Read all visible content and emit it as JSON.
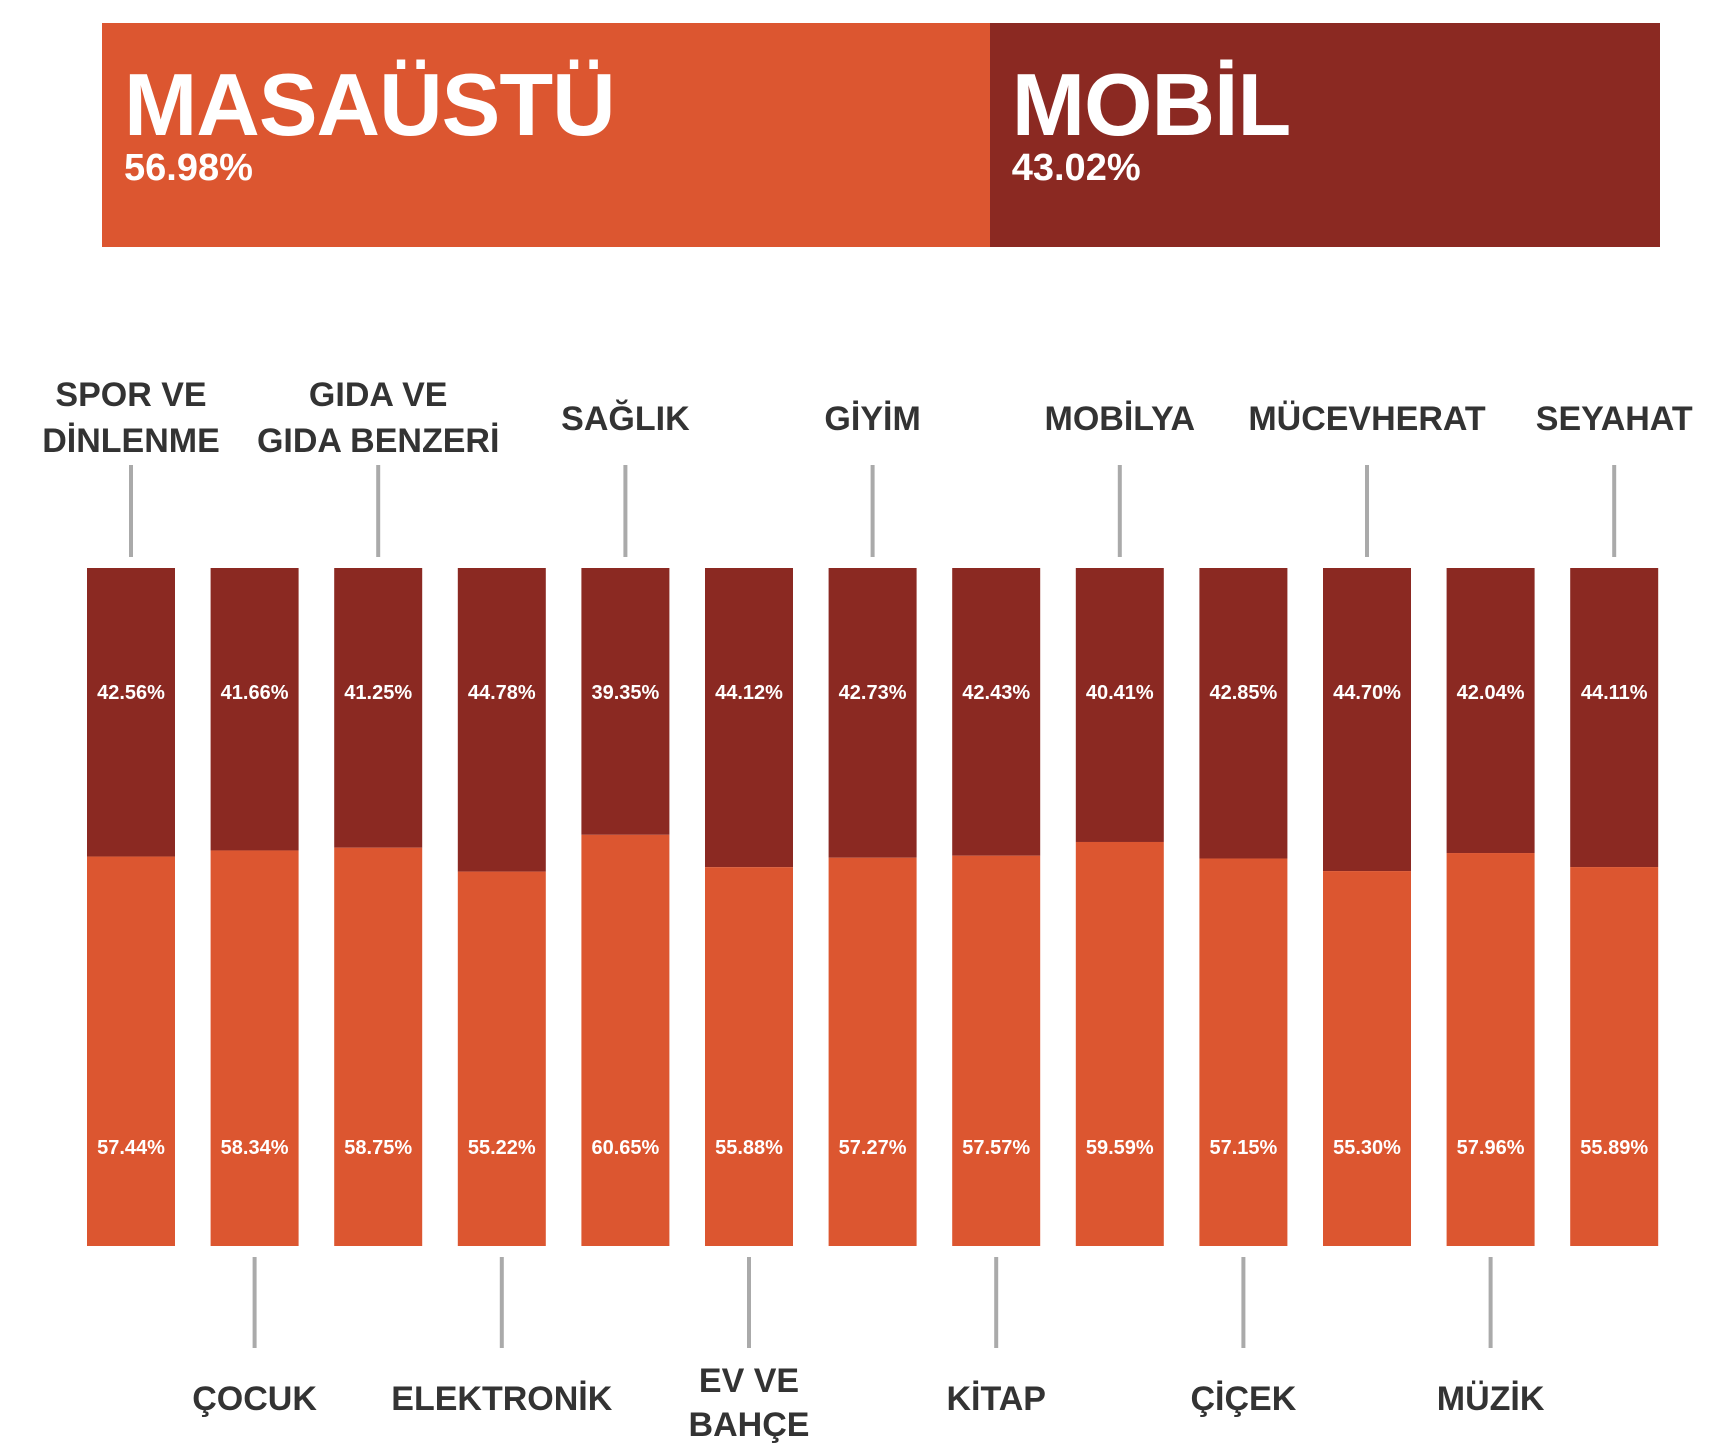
{
  "summary": {
    "desktop": {
      "label": "MASAÜSTÜ",
      "value_text": "56.98%",
      "value": 56.98
    },
    "mobile": {
      "label": "MOBİL",
      "value_text": "43.02%",
      "value": 43.02
    }
  },
  "colors": {
    "desktop": "#dc5630",
    "mobile": "#8b2922",
    "leader": "#aaaaaa",
    "label": "#333333"
  },
  "chart_data": {
    "type": "bar",
    "stacked": true,
    "categories": [
      [
        "SPOR VE",
        "DİNLENME"
      ],
      [
        "ÇOCUK"
      ],
      [
        "GIDA VE",
        "GIDA BENZERİ"
      ],
      [
        "ELEKTRONİK"
      ],
      [
        "SAĞLIK"
      ],
      [
        "EV VE",
        "BAHÇE"
      ],
      [
        "GİYİM"
      ],
      [
        "KİTAP"
      ],
      [
        "MOBİLYA"
      ],
      [
        "ÇİÇEK"
      ],
      [
        "MÜCEVHERAT"
      ],
      [
        "MÜZİK"
      ],
      [
        "SEYAHAT"
      ]
    ],
    "label_positions": [
      "top",
      "bottom",
      "top",
      "bottom",
      "top",
      "bottom",
      "top",
      "bottom",
      "top",
      "bottom",
      "top",
      "bottom",
      "top"
    ],
    "series": [
      {
        "key": "mobile",
        "values": [
          42.56,
          41.66,
          41.25,
          44.78,
          39.35,
          44.12,
          42.73,
          42.43,
          40.41,
          42.85,
          44.7,
          42.04,
          44.11
        ],
        "labels": [
          "42.56%",
          "41.66%",
          "41.25%",
          "44.78%",
          "39.35%",
          "44.12%",
          "42.73%",
          "42.43%",
          "40.41%",
          "42.85%",
          "44.70%",
          "42.04%",
          "44.11%"
        ]
      },
      {
        "key": "desktop",
        "values": [
          57.44,
          58.34,
          58.75,
          55.22,
          60.65,
          55.88,
          57.27,
          57.57,
          59.59,
          57.15,
          55.3,
          57.96,
          55.89
        ],
        "labels": [
          "57.44%",
          "58.34%",
          "58.75%",
          "55.22%",
          "60.65%",
          "55.88%",
          "57.27%",
          "57.57%",
          "59.59%",
          "57.15%",
          "55.30%",
          "57.96%",
          "55.89%"
        ]
      }
    ],
    "ylim": [
      0,
      100
    ]
  }
}
